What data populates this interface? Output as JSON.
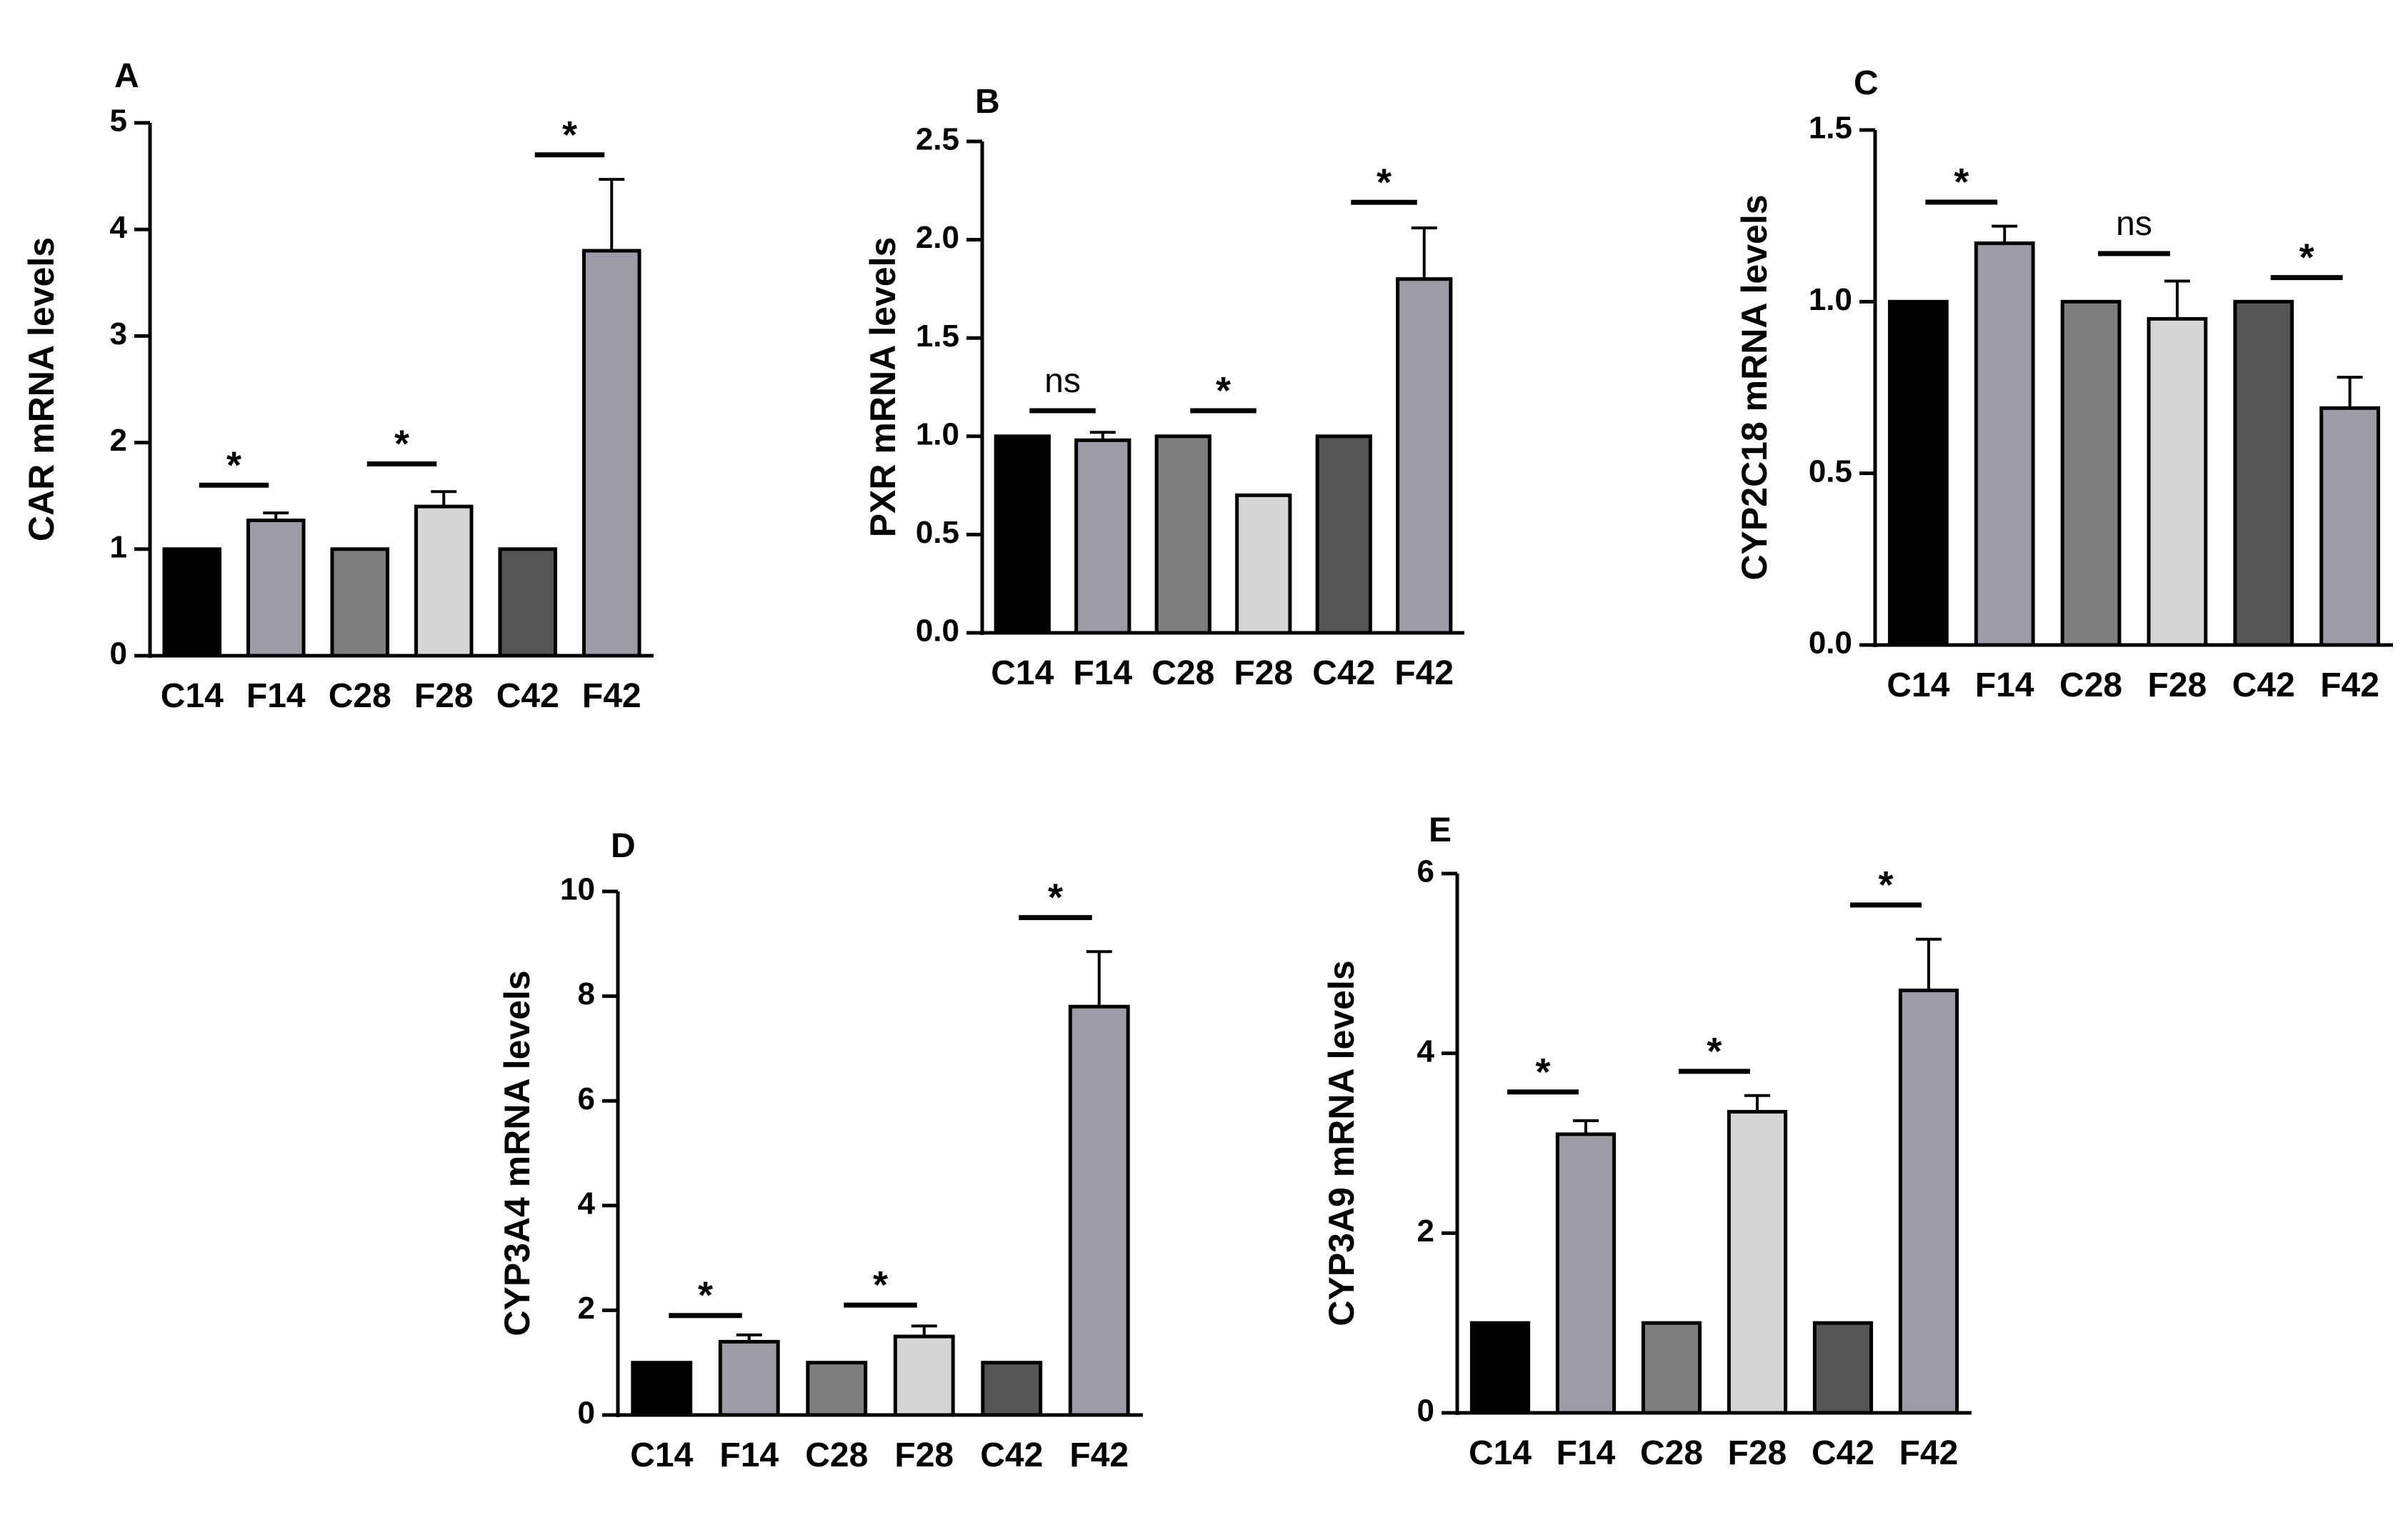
{
  "chart_data": [
    {
      "type": "bar",
      "panel": "A",
      "ylabel": "CAR mRNA levels",
      "ylim": [
        0,
        5
      ],
      "yticks": [
        "0",
        "1",
        "2",
        "3",
        "4",
        "5"
      ],
      "categories": [
        "C14",
        "F14",
        "C28",
        "F28",
        "C42",
        "F42"
      ],
      "values": [
        1.0,
        1.27,
        1.0,
        1.4,
        1.0,
        3.8
      ],
      "errors": [
        0,
        0.07,
        0,
        0.14,
        0,
        0.67
      ],
      "bar_colors": [
        "#000000",
        "#9c9ca6",
        "#7e7e7e",
        "#d6d6d6",
        "#555555",
        "#9c9ca6"
      ],
      "significance": [
        {
          "pair": [
            0,
            1
          ],
          "label": "*",
          "y": 1.6
        },
        {
          "pair": [
            2,
            3
          ],
          "label": "*",
          "y": 1.8
        },
        {
          "pair": [
            4,
            5
          ],
          "label": "*",
          "y": 4.7
        }
      ]
    },
    {
      "type": "bar",
      "panel": "B",
      "ylabel": "PXR mRNA levels",
      "ylim": [
        0,
        2.5
      ],
      "yticks": [
        "0.0",
        "0.5",
        "1.0",
        "1.5",
        "2.0",
        "2.5"
      ],
      "categories": [
        "C14",
        "F14",
        "C28",
        "F28",
        "C42",
        "F42"
      ],
      "values": [
        1.0,
        0.98,
        1.0,
        0.7,
        1.0,
        1.8
      ],
      "errors": [
        0,
        0.04,
        0,
        0,
        0,
        0.26
      ],
      "bar_colors": [
        "#000000",
        "#9c9ca6",
        "#7e7e7e",
        "#d6d6d6",
        "#555555",
        "#9c9ca6"
      ],
      "significance": [
        {
          "pair": [
            0,
            1
          ],
          "label": "ns",
          "y": 1.13
        },
        {
          "pair": [
            2,
            3
          ],
          "label": "*",
          "y": 1.13
        },
        {
          "pair": [
            4,
            5
          ],
          "label": "*",
          "y": 2.19
        }
      ]
    },
    {
      "type": "bar",
      "panel": "C",
      "ylabel": "CYP2C18 mRNA levels",
      "ylim": [
        0,
        1.5
      ],
      "yticks": [
        "0.0",
        "0.5",
        "1.0",
        "1.5"
      ],
      "categories": [
        "C14",
        "F14",
        "C28",
        "F28",
        "C42",
        "F42"
      ],
      "values": [
        1.0,
        1.17,
        1.0,
        0.95,
        1.0,
        0.69
      ],
      "errors": [
        0,
        0.05,
        0,
        0.11,
        0,
        0.09
      ],
      "bar_colors": [
        "#000000",
        "#9c9ca6",
        "#7e7e7e",
        "#d6d6d6",
        "#555555",
        "#9c9ca6"
      ],
      "significance": [
        {
          "pair": [
            0,
            1
          ],
          "label": "*",
          "y": 1.29
        },
        {
          "pair": [
            2,
            3
          ],
          "label": "ns",
          "y": 1.14
        },
        {
          "pair": [
            4,
            5
          ],
          "label": "*",
          "y": 1.07
        }
      ]
    },
    {
      "type": "bar",
      "panel": "D",
      "ylabel": "CYP3A4 mRNA levels",
      "ylim": [
        0,
        10
      ],
      "yticks": [
        "0",
        "2",
        "4",
        "6",
        "8",
        "10"
      ],
      "categories": [
        "C14",
        "F14",
        "C28",
        "F28",
        "C42",
        "F42"
      ],
      "values": [
        1.0,
        1.4,
        1.0,
        1.5,
        1.0,
        7.8
      ],
      "errors": [
        0,
        0.13,
        0,
        0.2,
        0,
        1.05
      ],
      "bar_colors": [
        "#000000",
        "#9c9ca6",
        "#7e7e7e",
        "#d6d6d6",
        "#555555",
        "#9c9ca6"
      ],
      "significance": [
        {
          "pair": [
            0,
            1
          ],
          "label": "*",
          "y": 1.9
        },
        {
          "pair": [
            2,
            3
          ],
          "label": "*",
          "y": 2.1
        },
        {
          "pair": [
            4,
            5
          ],
          "label": "*",
          "y": 9.5
        }
      ]
    },
    {
      "type": "bar",
      "panel": "E",
      "ylabel": "CYP3A9 mRNA levels",
      "ylim": [
        0,
        6
      ],
      "yticks": [
        "0",
        "2",
        "4",
        "6"
      ],
      "categories": [
        "C14",
        "F14",
        "C28",
        "F28",
        "C42",
        "F42"
      ],
      "values": [
        1.0,
        3.1,
        1.0,
        3.35,
        1.0,
        4.7
      ],
      "errors": [
        0,
        0.15,
        0,
        0.18,
        0,
        0.57
      ],
      "bar_colors": [
        "#000000",
        "#9c9ca6",
        "#7e7e7e",
        "#d6d6d6",
        "#555555",
        "#9c9ca6"
      ],
      "significance": [
        {
          "pair": [
            0,
            1
          ],
          "label": "*",
          "y": 3.57
        },
        {
          "pair": [
            2,
            3
          ],
          "label": "*",
          "y": 3.8
        },
        {
          "pair": [
            4,
            5
          ],
          "label": "*",
          "y": 5.65
        }
      ]
    }
  ]
}
